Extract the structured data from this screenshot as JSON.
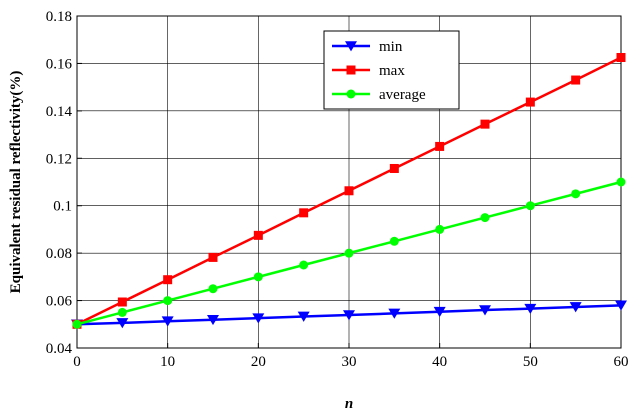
{
  "chart_data": {
    "type": "line",
    "title": "",
    "xlabel": "n",
    "ylabel": "Equivalent residual reflectivity(%)",
    "xlim": [
      0,
      60
    ],
    "ylim": [
      0.04,
      0.18
    ],
    "xticks": [
      0,
      10,
      20,
      30,
      40,
      50,
      60
    ],
    "yticks": [
      0.04,
      0.06,
      0.08,
      0.1,
      0.12,
      0.14,
      0.16,
      0.18
    ],
    "xtick_labels": [
      "0",
      "10",
      "20",
      "30",
      "40",
      "50",
      "60"
    ],
    "ytick_labels": [
      "0.04",
      "0.06",
      "0.08",
      "0.1",
      "0.12",
      "0.14",
      "0.16",
      "0.18"
    ],
    "grid": true,
    "legend_position": "top-center",
    "x": [
      0,
      5,
      10,
      15,
      20,
      25,
      30,
      35,
      40,
      45,
      50,
      55,
      60
    ],
    "series": [
      {
        "name": "min",
        "color": "#0000ff",
        "marker": "triangle-down",
        "values": [
          0.05,
          0.0506,
          0.0513,
          0.0519,
          0.0526,
          0.0533,
          0.0539,
          0.0546,
          0.0553,
          0.056,
          0.0566,
          0.0573,
          0.058
        ]
      },
      {
        "name": "max",
        "color": "#ff0000",
        "marker": "square",
        "values": [
          0.05,
          0.0594,
          0.0688,
          0.0782,
          0.0875,
          0.097,
          0.1063,
          0.1157,
          0.125,
          0.1344,
          0.1437,
          0.153,
          0.1625
        ]
      },
      {
        "name": "average",
        "color": "#00ff00",
        "marker": "circle",
        "values": [
          0.05,
          0.055,
          0.06,
          0.065,
          0.07,
          0.075,
          0.08,
          0.085,
          0.09,
          0.095,
          0.1,
          0.105,
          0.11
        ]
      }
    ]
  }
}
